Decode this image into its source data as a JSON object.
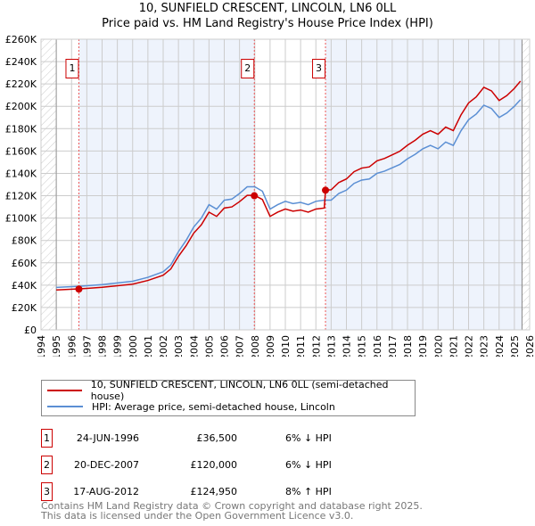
{
  "chart_data": {
    "type": "line",
    "title": "10, SUNFIELD CRESCENT, LINCOLN, LN6 0LL",
    "subtitle": "Price paid vs. HM Land Registry's House Price Index (HPI)",
    "xlim": [
      1994,
      2026
    ],
    "ylim": [
      0,
      260000
    ],
    "x_ticks": [
      "1994",
      "1995",
      "1996",
      "1997",
      "1998",
      "1999",
      "2000",
      "2001",
      "2002",
      "2003",
      "2004",
      "2005",
      "2006",
      "2007",
      "2008",
      "2009",
      "2010",
      "2011",
      "2012",
      "2013",
      "2014",
      "2015",
      "2016",
      "2017",
      "2018",
      "2019",
      "2020",
      "2021",
      "2022",
      "2023",
      "2024",
      "2025",
      "2026"
    ],
    "y_ticks": [
      "£0",
      "£20K",
      "£40K",
      "£60K",
      "£80K",
      "£100K",
      "£120K",
      "£140K",
      "£160K",
      "£180K",
      "£200K",
      "£220K",
      "£240K",
      "£260K"
    ],
    "grid": true,
    "series": [
      {
        "name": "10, SUNFIELD CRESCENT, LINCOLN, LN6 0LL (semi-detached house)",
        "color": "#cc0000",
        "x": [
          1995,
          1996.5,
          1997,
          1998,
          1999,
          2000,
          2001,
          2002,
          2002.5,
          2003,
          2003.5,
          2004,
          2004.5,
          2005,
          2005.5,
          2006,
          2006.5,
          2007,
          2007.5,
          2008,
          2008.5,
          2009,
          2009.5,
          2010,
          2010.5,
          2011,
          2011.5,
          2012,
          2012.55,
          2012.63,
          2013,
          2013.5,
          2014,
          2014.5,
          2015,
          2015.5,
          2016,
          2016.5,
          2017,
          2017.5,
          2018,
          2018.5,
          2019,
          2019.5,
          2020,
          2020.5,
          2021,
          2021.5,
          2022,
          2022.5,
          2023,
          2023.5,
          2024,
          2024.5,
          2025,
          2025.4
        ],
        "values": [
          35700,
          36700,
          37100,
          38100,
          39500,
          40900,
          44200,
          48900,
          54500,
          65800,
          75200,
          86500,
          94000,
          105300,
          101500,
          109000,
          110000,
          114700,
          120300,
          120300,
          116600,
          101500,
          105300,
          108100,
          106200,
          107200,
          105300,
          108100,
          109000,
          125000,
          125300,
          131800,
          135000,
          141500,
          144700,
          145800,
          151200,
          153400,
          156600,
          159800,
          165200,
          169600,
          175000,
          178200,
          175000,
          181400,
          178200,
          192200,
          203000,
          208400,
          217000,
          213800,
          205200,
          209500,
          216000,
          222500
        ]
      },
      {
        "name": "HPI: Average price, semi-detached house, Lincoln",
        "color": "#5b8fd4",
        "x": [
          1995,
          1996.5,
          1997,
          1998,
          1999,
          2000,
          2001,
          2002,
          2002.5,
          2003,
          2003.5,
          2004,
          2004.5,
          2005,
          2005.5,
          2006,
          2006.5,
          2007,
          2007.5,
          2008,
          2008.5,
          2009,
          2009.5,
          2010,
          2010.5,
          2011,
          2011.5,
          2012,
          2012.55,
          2012.63,
          2013,
          2013.5,
          2014,
          2014.5,
          2015,
          2015.5,
          2016,
          2016.5,
          2017,
          2017.5,
          2018,
          2018.5,
          2019,
          2019.5,
          2020,
          2020.5,
          2021,
          2021.5,
          2022,
          2022.5,
          2023,
          2023.5,
          2024,
          2024.5,
          2025,
          2025.4
        ],
        "values": [
          38000,
          39000,
          39500,
          40500,
          42000,
          43500,
          47000,
          52000,
          58000,
          70000,
          80000,
          92000,
          100000,
          112000,
          108000,
          116000,
          117000,
          122000,
          128000,
          128000,
          124000,
          108000,
          112000,
          115000,
          113000,
          114000,
          112000,
          115000,
          116000,
          116000,
          116000,
          122000,
          125000,
          131000,
          134000,
          135000,
          140000,
          142000,
          145000,
          148000,
          153000,
          157000,
          162000,
          165000,
          162000,
          168000,
          165000,
          178000,
          188000,
          193000,
          201000,
          198000,
          190000,
          194000,
          200000,
          206000
        ]
      }
    ],
    "sales": [
      {
        "label": "1",
        "x": 1996.48,
        "value": 36500,
        "date": "24-JUN-1996",
        "price": "£36,500",
        "hpi": "6% ↓ HPI"
      },
      {
        "label": "2",
        "x": 2007.97,
        "value": 120000,
        "date": "20-DEC-2007",
        "price": "£120,000",
        "hpi": "6% ↓ HPI"
      },
      {
        "label": "3",
        "x": 2012.63,
        "value": 124950,
        "date": "17-AUG-2012",
        "price": "£124,950",
        "hpi": "8% ↑ HPI"
      }
    ],
    "data_end": 2025.5,
    "legend_position": "below"
  },
  "legend": {
    "items": [
      {
        "label": "10, SUNFIELD CRESCENT, LINCOLN, LN6 0LL (semi-detached house)",
        "color": "#cc0000"
      },
      {
        "label": "HPI: Average price, semi-detached house, Lincoln",
        "color": "#5b8fd4"
      }
    ]
  },
  "footer": {
    "line1": "Contains HM Land Registry data © Crown copyright and database right 2025.",
    "line2": "This data is licensed under the Open Government Licence v3.0."
  }
}
